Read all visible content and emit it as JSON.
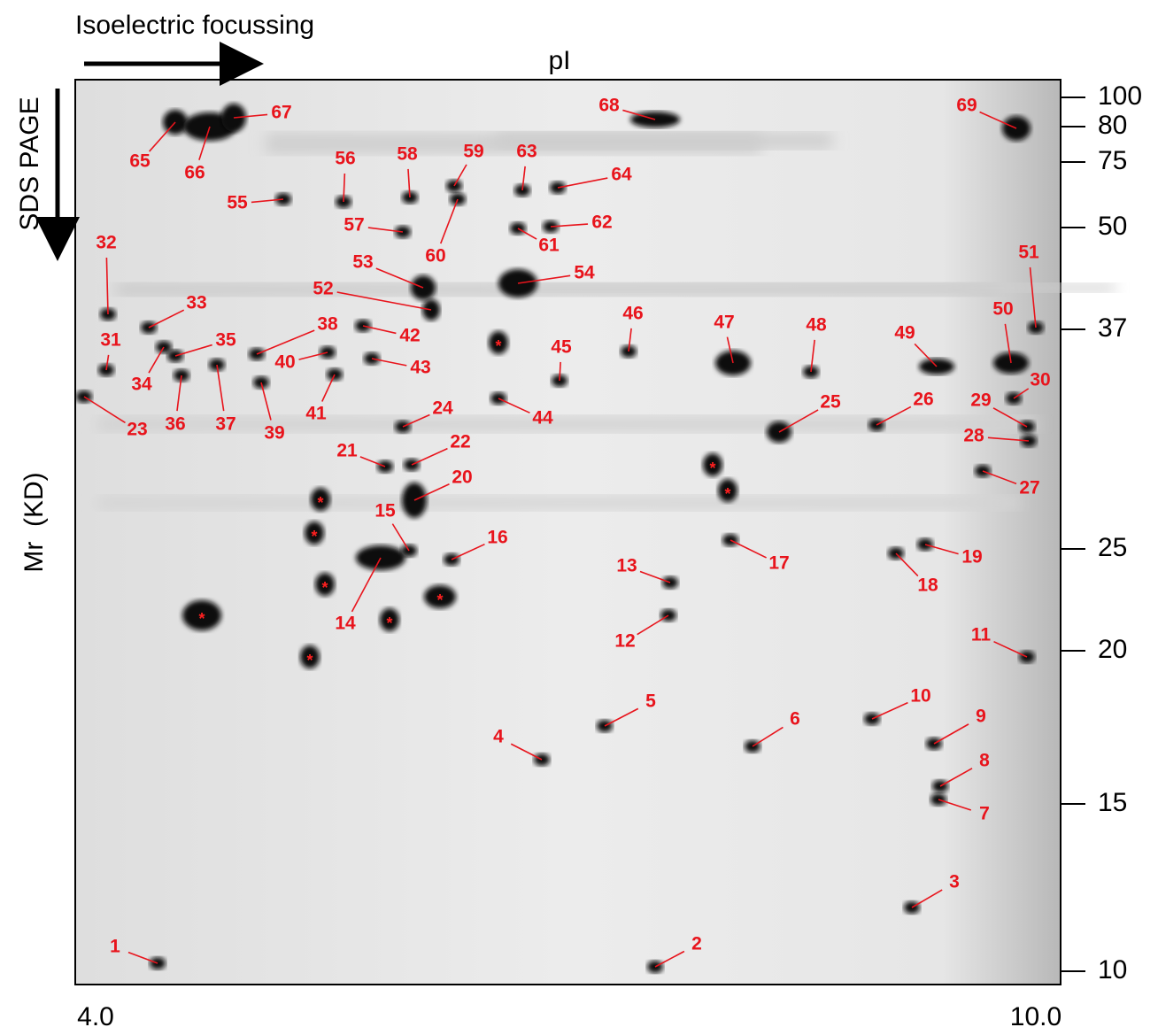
{
  "header": {
    "ief_label": "Isoelectric focussing",
    "pi_label": "pI",
    "sds_label": "SDS PAGE",
    "mr_label": "Mr  (KD)"
  },
  "mw_markers": [
    "100",
    "80",
    "75",
    "50",
    "37",
    "25",
    "20",
    "15",
    "10"
  ],
  "pi_range": [
    "4.0",
    "10.0"
  ],
  "spot_labels": [
    "1",
    "2",
    "3",
    "4",
    "5",
    "6",
    "7",
    "8",
    "9",
    "10",
    "11",
    "12",
    "13",
    "14",
    "15",
    "16",
    "17",
    "18",
    "19",
    "20",
    "21",
    "22",
    "23",
    "24",
    "25",
    "26",
    "27",
    "28",
    "29",
    "30",
    "31",
    "32",
    "33",
    "34",
    "35",
    "36",
    "37",
    "38",
    "39",
    "40",
    "41",
    "42",
    "43",
    "44",
    "45",
    "46",
    "47",
    "48",
    "49",
    "50",
    "51",
    "52",
    "53",
    "54",
    "55",
    "56",
    "57",
    "58",
    "59",
    "60",
    "61",
    "62",
    "63",
    "64",
    "65",
    "66",
    "67",
    "68",
    "69"
  ],
  "marker_symbol": "*"
}
